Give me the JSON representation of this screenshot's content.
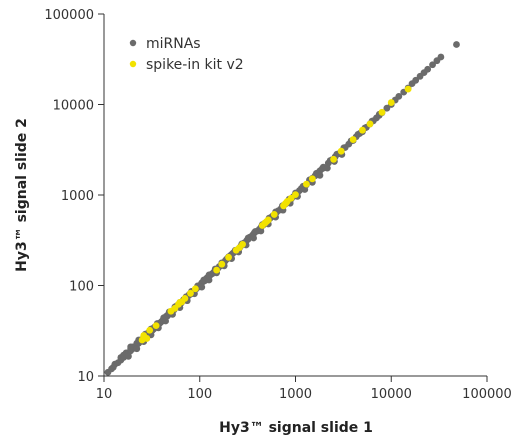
{
  "chart_data": {
    "type": "scatter",
    "title": "",
    "xlabel": "Hy3™ signal slide 1",
    "ylabel": "Hy3™ signal slide 2",
    "x_scale": "log",
    "y_scale": "log",
    "xlim": [
      10,
      100000
    ],
    "ylim": [
      10,
      100000
    ],
    "x_ticks": [
      "10",
      "100",
      "1000",
      "10000",
      "100000"
    ],
    "y_ticks": [
      "10",
      "100",
      "1000",
      "10000",
      "100000"
    ],
    "grid": false,
    "legend_position": "top-left",
    "series": [
      {
        "name": "miRNAs",
        "color": "#6b6b6b",
        "points": [
          [
            11,
            11
          ],
          [
            12,
            12
          ],
          [
            12.5,
            12.5
          ],
          [
            13,
            13.5
          ],
          [
            14,
            14
          ],
          [
            15,
            15
          ],
          [
            15,
            16
          ],
          [
            16,
            16
          ],
          [
            17,
            17
          ],
          [
            17,
            18
          ],
          [
            18,
            18
          ],
          [
            19,
            19
          ],
          [
            19,
            20
          ],
          [
            20,
            20
          ],
          [
            20,
            21
          ],
          [
            21,
            21
          ],
          [
            22,
            22
          ],
          [
            22,
            23
          ],
          [
            23,
            23
          ],
          [
            24,
            24
          ],
          [
            24,
            25
          ],
          [
            25,
            25
          ],
          [
            26,
            26
          ],
          [
            26,
            27
          ],
          [
            27,
            27
          ],
          [
            28,
            28
          ],
          [
            28,
            29
          ],
          [
            29,
            30
          ],
          [
            30,
            30
          ],
          [
            30,
            31
          ],
          [
            31,
            32
          ],
          [
            32,
            32
          ],
          [
            33,
            33
          ],
          [
            33,
            34
          ],
          [
            34,
            35
          ],
          [
            35,
            35
          ],
          [
            36,
            36
          ],
          [
            37,
            37
          ],
          [
            38,
            38
          ],
          [
            39,
            39
          ],
          [
            40,
            40
          ],
          [
            41,
            41
          ],
          [
            42,
            42
          ],
          [
            43,
            43
          ],
          [
            44,
            45
          ],
          [
            45,
            46
          ],
          [
            46,
            46
          ],
          [
            47,
            48
          ],
          [
            48,
            49
          ],
          [
            50,
            50
          ],
          [
            52,
            52
          ],
          [
            54,
            54
          ],
          [
            55,
            56
          ],
          [
            57,
            58
          ],
          [
            58,
            60
          ],
          [
            60,
            60
          ],
          [
            62,
            62
          ],
          [
            64,
            64
          ],
          [
            65,
            66
          ],
          [
            67,
            68
          ],
          [
            68,
            70
          ],
          [
            70,
            70
          ],
          [
            72,
            72
          ],
          [
            74,
            74
          ],
          [
            75,
            76
          ],
          [
            77,
            78
          ],
          [
            78,
            80
          ],
          [
            80,
            80
          ],
          [
            82,
            82
          ],
          [
            85,
            85
          ],
          [
            88,
            88
          ],
          [
            90,
            90
          ],
          [
            92,
            92
          ],
          [
            95,
            95
          ],
          [
            98,
            98
          ],
          [
            100,
            100
          ],
          [
            103,
            103
          ],
          [
            105,
            107
          ],
          [
            108,
            110
          ],
          [
            110,
            112
          ],
          [
            113,
            113
          ],
          [
            115,
            117
          ],
          [
            118,
            120
          ],
          [
            120,
            122
          ],
          [
            123,
            125
          ],
          [
            125,
            128
          ],
          [
            128,
            130
          ],
          [
            130,
            132
          ],
          [
            135,
            135
          ],
          [
            140,
            140
          ],
          [
            145,
            145
          ],
          [
            150,
            150
          ],
          [
            155,
            155
          ],
          [
            160,
            162
          ],
          [
            165,
            165
          ],
          [
            170,
            172
          ],
          [
            175,
            178
          ],
          [
            180,
            180
          ],
          [
            185,
            188
          ],
          [
            190,
            195
          ],
          [
            195,
            200
          ],
          [
            200,
            200
          ],
          [
            205,
            205
          ],
          [
            210,
            215
          ],
          [
            215,
            220
          ],
          [
            220,
            225
          ],
          [
            225,
            230
          ],
          [
            230,
            235
          ],
          [
            240,
            240
          ],
          [
            250,
            250
          ],
          [
            260,
            260
          ],
          [
            270,
            275
          ],
          [
            280,
            285
          ],
          [
            290,
            295
          ],
          [
            300,
            300
          ],
          [
            310,
            315
          ],
          [
            320,
            325
          ],
          [
            330,
            340
          ],
          [
            340,
            345
          ],
          [
            350,
            350
          ],
          [
            360,
            365
          ],
          [
            370,
            380
          ],
          [
            380,
            390
          ],
          [
            400,
            400
          ],
          [
            420,
            420
          ],
          [
            440,
            445
          ],
          [
            460,
            465
          ],
          [
            480,
            490
          ],
          [
            500,
            500
          ],
          [
            520,
            525
          ],
          [
            540,
            550
          ],
          [
            560,
            570
          ],
          [
            580,
            590
          ],
          [
            600,
            600
          ],
          [
            630,
            640
          ],
          [
            660,
            670
          ],
          [
            700,
            700
          ],
          [
            740,
            750
          ],
          [
            780,
            790
          ],
          [
            820,
            830
          ],
          [
            860,
            870
          ],
          [
            900,
            900
          ],
          [
            950,
            960
          ],
          [
            1000,
            1000
          ],
          [
            1050,
            1060
          ],
          [
            1100,
            1120
          ],
          [
            1150,
            1180
          ],
          [
            1200,
            1230
          ],
          [
            1300,
            1300
          ],
          [
            1400,
            1420
          ],
          [
            1500,
            1530
          ],
          [
            1600,
            1630
          ],
          [
            1700,
            1750
          ],
          [
            1800,
            1850
          ],
          [
            1900,
            1950
          ],
          [
            2000,
            2000
          ],
          [
            2200,
            2250
          ],
          [
            2400,
            2450
          ],
          [
            2600,
            2650
          ],
          [
            2800,
            2850
          ],
          [
            3000,
            3000
          ],
          [
            3300,
            3350
          ],
          [
            3600,
            3650
          ],
          [
            4000,
            4000
          ],
          [
            4300,
            4400
          ],
          [
            4700,
            4800
          ],
          [
            5000,
            5000
          ],
          [
            5500,
            5600
          ],
          [
            6000,
            6100
          ],
          [
            6500,
            6600
          ],
          [
            7000,
            7100
          ],
          [
            7500,
            7600
          ],
          [
            8000,
            8100
          ],
          [
            9000,
            9100
          ],
          [
            10000,
            10000
          ],
          [
            11000,
            11200
          ],
          [
            12000,
            12300
          ],
          [
            13500,
            13700
          ],
          [
            15000,
            15200
          ],
          [
            16500,
            17000
          ],
          [
            18000,
            18500
          ],
          [
            20000,
            20500
          ],
          [
            22000,
            22500
          ],
          [
            24000,
            24500
          ],
          [
            27000,
            27500
          ],
          [
            30000,
            30500
          ],
          [
            33000,
            33500
          ],
          [
            48000,
            46000
          ],
          [
            16,
            17
          ],
          [
            19,
            21
          ],
          [
            23,
            25
          ],
          [
            27,
            29
          ],
          [
            31,
            33
          ],
          [
            36,
            38
          ],
          [
            42,
            44
          ],
          [
            48,
            51
          ],
          [
            55,
            58
          ],
          [
            62,
            65
          ],
          [
            72,
            75
          ],
          [
            82,
            86
          ],
          [
            95,
            99
          ],
          [
            110,
            115
          ],
          [
            125,
            131
          ],
          [
            145,
            152
          ],
          [
            170,
            178
          ],
          [
            200,
            208
          ],
          [
            235,
            245
          ],
          [
            275,
            288
          ],
          [
            320,
            335
          ],
          [
            380,
            395
          ],
          [
            450,
            470
          ],
          [
            530,
            555
          ],
          [
            620,
            650
          ],
          [
            730,
            760
          ],
          [
            860,
            900
          ],
          [
            1000,
            1050
          ],
          [
            1200,
            1250
          ],
          [
            1400,
            1470
          ],
          [
            1650,
            1730
          ],
          [
            1950,
            2030
          ],
          [
            2300,
            2400
          ],
          [
            2700,
            2820
          ],
          [
            3200,
            3330
          ],
          [
            3800,
            3950
          ],
          [
            4500,
            4680
          ],
          [
            5300,
            5500
          ],
          [
            6300,
            6550
          ],
          [
            7500,
            7800
          ],
          [
            18,
            16.5
          ],
          [
            22,
            20
          ],
          [
            26,
            24
          ],
          [
            31,
            28.5
          ],
          [
            37,
            34
          ],
          [
            44,
            40.5
          ],
          [
            52,
            48
          ],
          [
            62,
            57
          ],
          [
            74,
            68
          ],
          [
            88,
            81
          ],
          [
            105,
            96
          ],
          [
            125,
            115
          ],
          [
            150,
            138
          ],
          [
            180,
            165
          ],
          [
            215,
            198
          ],
          [
            255,
            235
          ],
          [
            305,
            280
          ],
          [
            365,
            335
          ],
          [
            435,
            400
          ],
          [
            520,
            478
          ],
          [
            620,
            570
          ],
          [
            740,
            680
          ],
          [
            880,
            810
          ],
          [
            1050,
            965
          ],
          [
            1250,
            1150
          ],
          [
            1500,
            1380
          ],
          [
            1800,
            1650
          ],
          [
            2150,
            1980
          ],
          [
            2550,
            2350
          ],
          [
            3050,
            2800
          ]
        ]
      },
      {
        "name": "spike-in kit v2",
        "color": "#f2e200",
        "points": [
          [
            25,
            25
          ],
          [
            26,
            28
          ],
          [
            28,
            26
          ],
          [
            30,
            32
          ],
          [
            35,
            36
          ],
          [
            50,
            52
          ],
          [
            55,
            56
          ],
          [
            60,
            62
          ],
          [
            62,
            65
          ],
          [
            65,
            66
          ],
          [
            70,
            72
          ],
          [
            80,
            82
          ],
          [
            90,
            92
          ],
          [
            150,
            148
          ],
          [
            170,
            172
          ],
          [
            200,
            205
          ],
          [
            240,
            245
          ],
          [
            260,
            262
          ],
          [
            280,
            285
          ],
          [
            450,
            460
          ],
          [
            480,
            490
          ],
          [
            500,
            510
          ],
          [
            520,
            530
          ],
          [
            600,
            610
          ],
          [
            750,
            760
          ],
          [
            780,
            800
          ],
          [
            800,
            820
          ],
          [
            820,
            850
          ],
          [
            900,
            920
          ],
          [
            1000,
            1010
          ],
          [
            1300,
            1320
          ],
          [
            1500,
            1510
          ],
          [
            2500,
            2480
          ],
          [
            3000,
            3050
          ],
          [
            4000,
            4100
          ],
          [
            5000,
            5200
          ],
          [
            6000,
            6100
          ],
          [
            8000,
            8200
          ],
          [
            15000,
            14800
          ],
          [
            10000,
            10500
          ]
        ]
      }
    ]
  }
}
